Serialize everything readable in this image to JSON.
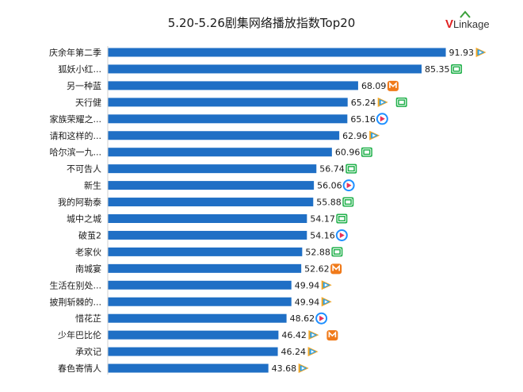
{
  "logo": {
    "brand_v": "V",
    "brand_rest": "Linkage"
  },
  "chart_data": {
    "type": "bar",
    "orientation": "horizontal",
    "title": "5.20-5.26剧集网络播放指数Top20",
    "xlim": [
      0,
      100
    ],
    "bar_color": "#1f6fc5",
    "categories": [
      "庆余年第二季",
      "狐妖小红...",
      "另一种蓝",
      "天行健",
      "家族荣耀之...",
      "请和这样的...",
      "哈尔滨一九...",
      "不可告人",
      "新生",
      "我的阿勒泰",
      "城中之城",
      "破茧2",
      "老家伙",
      "南城宴",
      "生活在别处...",
      "披荆斩棘的...",
      "惜花芷",
      "少年巴比伦",
      "承欢记",
      "春色寄情人"
    ],
    "values": [
      91.93,
      85.35,
      68.09,
      65.24,
      65.16,
      62.96,
      60.96,
      56.74,
      56.06,
      55.88,
      54.17,
      54.16,
      52.88,
      52.62,
      49.94,
      49.94,
      48.62,
      46.42,
      46.24,
      43.68
    ],
    "value_labels": [
      "91.93",
      "85.35",
      "68.09",
      "65.24",
      "65.16",
      "62.96",
      "60.96",
      "56.74",
      "56.06",
      "55.88",
      "54.17",
      "54.16",
      "52.88",
      "52.62",
      "49.94",
      "49.94",
      "48.62",
      "46.42",
      "46.24",
      "43.68"
    ],
    "platform_icons": [
      [
        "tencent-video-icon"
      ],
      [
        "iqiyi-icon"
      ],
      [
        "mango-tv-icon"
      ],
      [
        "tencent-video-icon",
        "iqiyi-icon"
      ],
      [
        "youku-icon"
      ],
      [
        "tencent-video-icon"
      ],
      [
        "iqiyi-icon"
      ],
      [
        "iqiyi-icon"
      ],
      [
        "youku-icon"
      ],
      [
        "iqiyi-icon"
      ],
      [
        "iqiyi-icon"
      ],
      [
        "youku-icon"
      ],
      [
        "iqiyi-icon"
      ],
      [
        "mango-tv-icon"
      ],
      [
        "tencent-video-icon"
      ],
      [
        "tencent-video-icon"
      ],
      [
        "youku-icon"
      ],
      [
        "tencent-video-icon",
        "mango-tv-icon"
      ],
      [
        "tencent-video-icon"
      ],
      [
        "tencent-video-icon"
      ]
    ],
    "icon_colors": {
      "tencent-video-icon": "#2aa0e8",
      "iqiyi-icon": "#22b14c",
      "mango-tv-icon": "#f07a1a",
      "youku-icon": "#1e8fff"
    }
  }
}
